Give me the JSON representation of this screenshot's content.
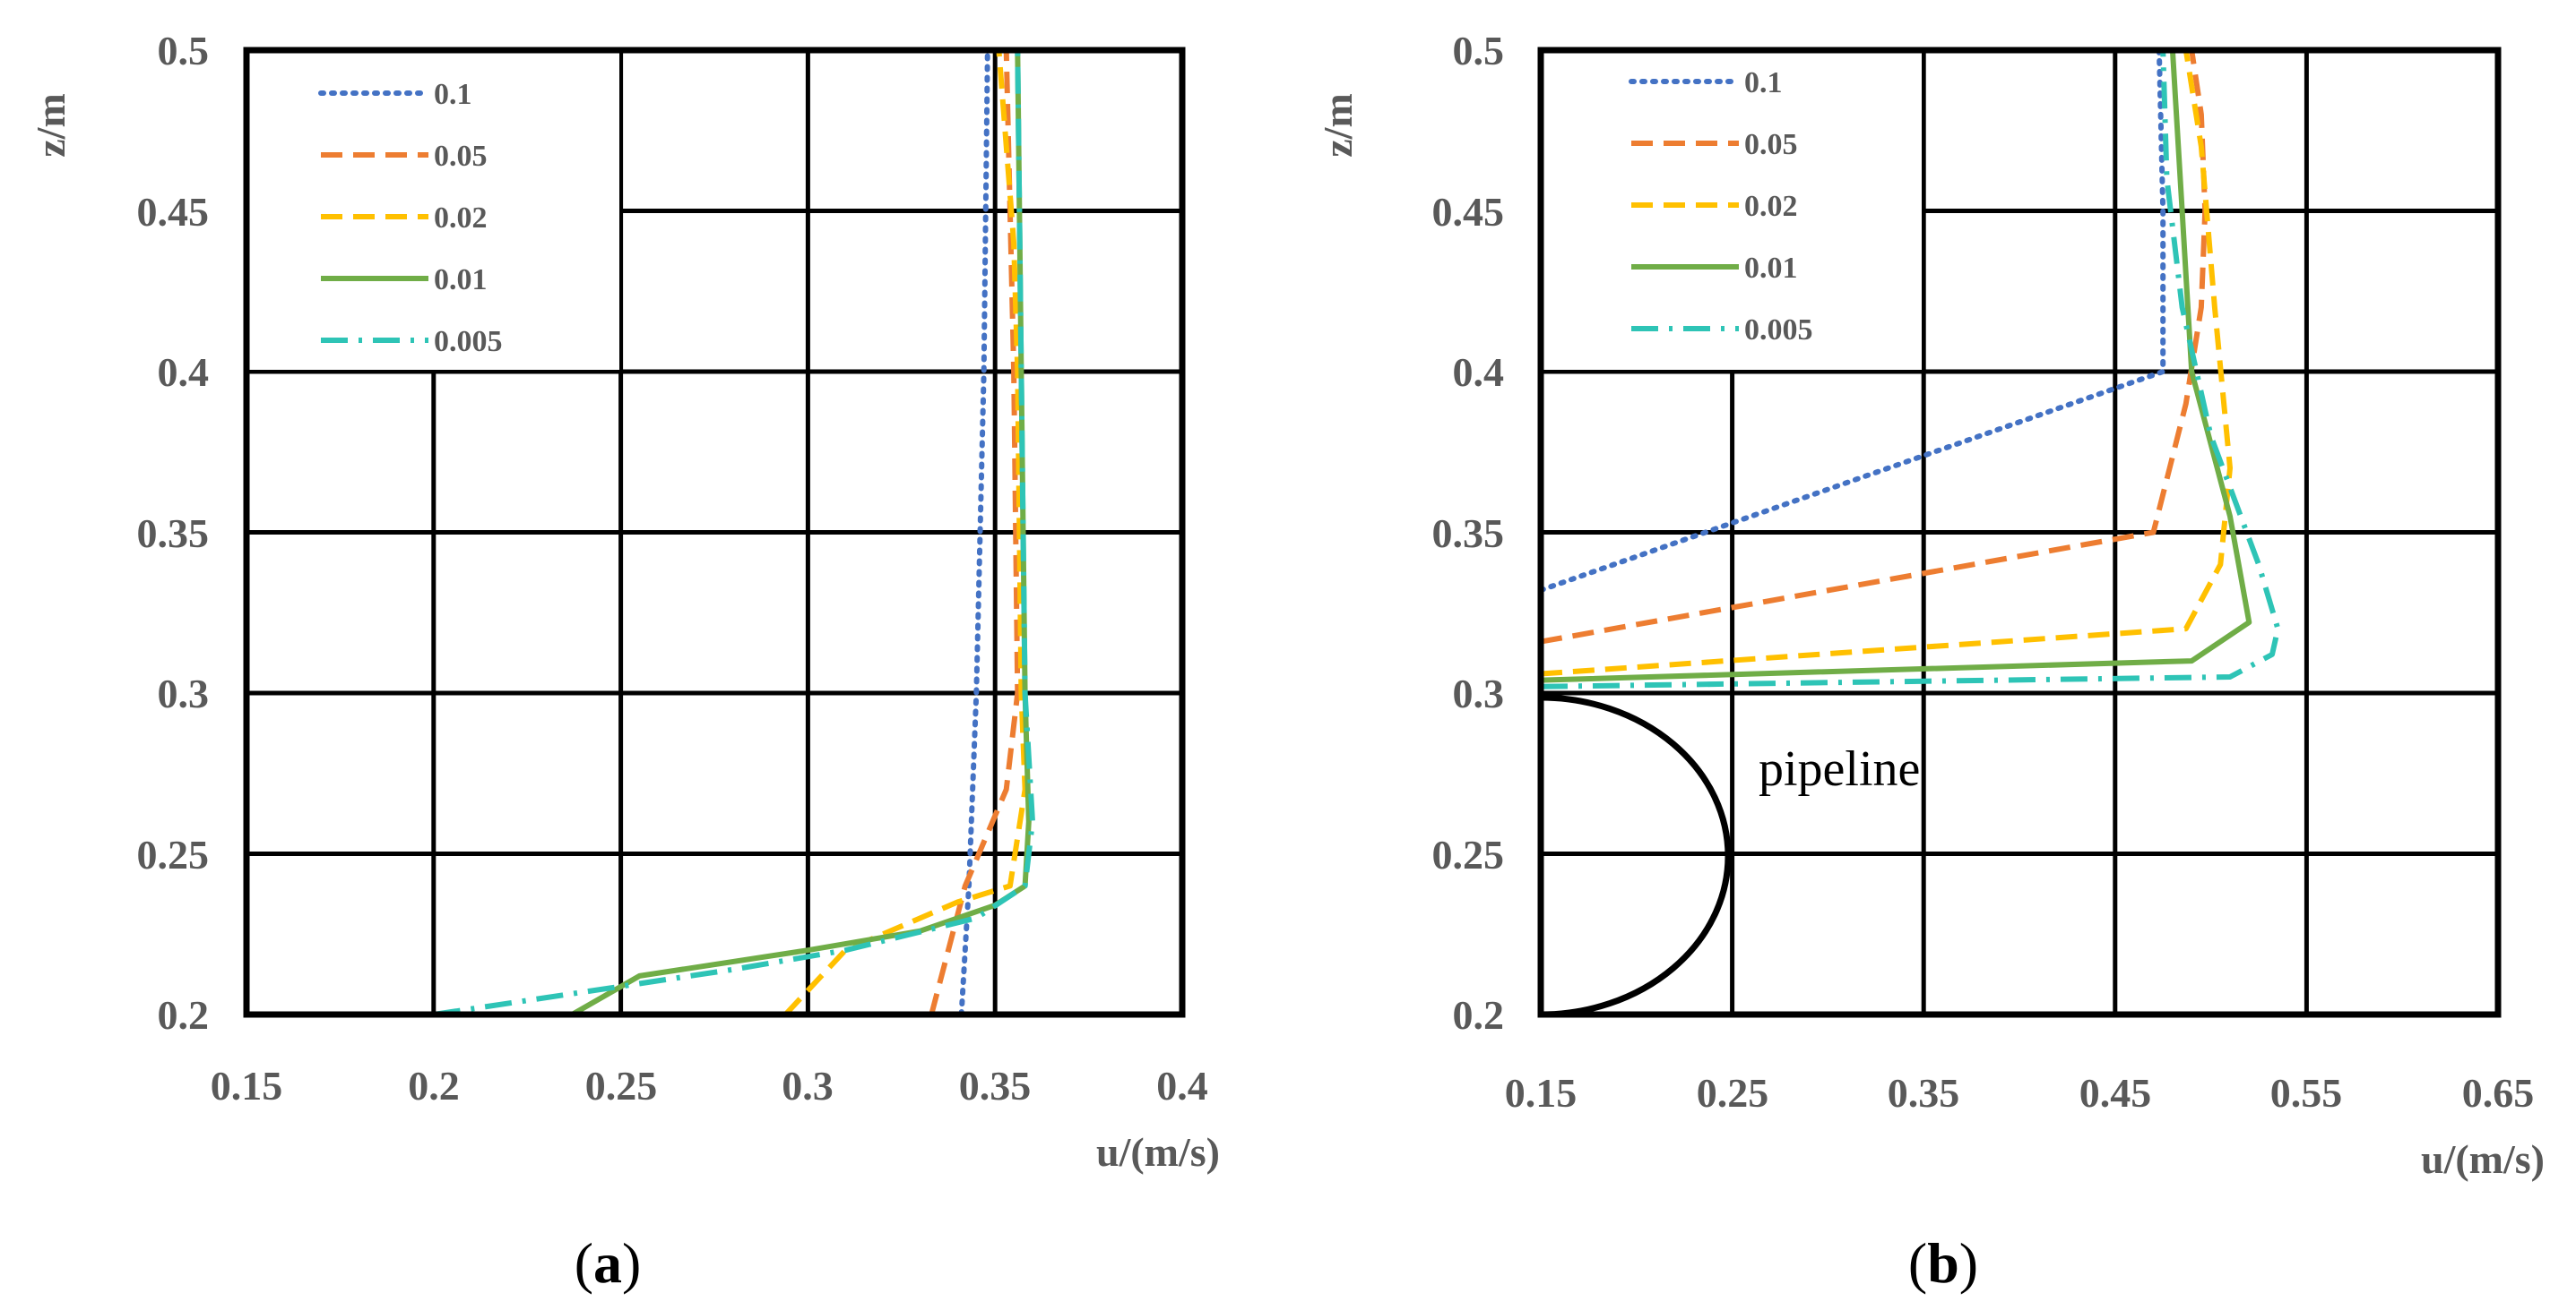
{
  "chart_data": [
    {
      "type": "line",
      "panel_label": "a",
      "title": "",
      "xlabel": "u/(m/s)",
      "ylabel": "z/m",
      "xlim": [
        0.15,
        0.4
      ],
      "ylim": [
        0.2,
        0.5
      ],
      "xticks": [
        "0.15",
        "0.2",
        "0.25",
        "0.3",
        "0.35",
        "0.4"
      ],
      "yticks": [
        "0.2",
        "0.25",
        "0.3",
        "0.35",
        "0.4",
        "0.45",
        "0.5"
      ],
      "grid": true,
      "legend_position": "top-left",
      "annotation": "",
      "series": [
        {
          "name": "0.1",
          "color": "#4472C4",
          "style": "dotted",
          "points": [
            [
              0.341,
              0.2
            ],
            [
              0.343,
              0.24
            ],
            [
              0.345,
              0.3
            ],
            [
              0.347,
              0.4
            ],
            [
              0.348,
              0.5
            ]
          ]
        },
        {
          "name": "0.05",
          "color": "#ED7D31",
          "style": "dashed",
          "points": [
            [
              0.333,
              0.2
            ],
            [
              0.342,
              0.24
            ],
            [
              0.353,
              0.27
            ],
            [
              0.356,
              0.3
            ],
            [
              0.355,
              0.4
            ],
            [
              0.354,
              0.45
            ],
            [
              0.353,
              0.5
            ]
          ]
        },
        {
          "name": "0.02",
          "color": "#FFC000",
          "style": "dashed",
          "points": [
            [
              0.294,
              0.2
            ],
            [
              0.31,
              0.22
            ],
            [
              0.34,
              0.235
            ],
            [
              0.354,
              0.24
            ],
            [
              0.358,
              0.27
            ],
            [
              0.357,
              0.3
            ],
            [
              0.356,
              0.4
            ],
            [
              0.355,
              0.44
            ],
            [
              0.351,
              0.5
            ]
          ]
        },
        {
          "name": "0.01",
          "color": "#70AD47",
          "style": "solid",
          "points": [
            [
              0.237,
              0.2
            ],
            [
              0.255,
              0.212
            ],
            [
              0.3,
              0.22
            ],
            [
              0.33,
              0.226
            ],
            [
              0.35,
              0.234
            ],
            [
              0.358,
              0.24
            ],
            [
              0.359,
              0.26
            ],
            [
              0.358,
              0.3
            ],
            [
              0.357,
              0.4
            ],
            [
              0.356,
              0.5
            ]
          ]
        },
        {
          "name": "0.005",
          "color": "#2EC4B6",
          "style": "dashdot",
          "points": [
            [
              0.2,
              0.2
            ],
            [
              0.24,
              0.207
            ],
            [
              0.28,
              0.214
            ],
            [
              0.31,
              0.22
            ],
            [
              0.345,
              0.23
            ],
            [
              0.358,
              0.24
            ],
            [
              0.36,
              0.26
            ],
            [
              0.358,
              0.3
            ],
            [
              0.357,
              0.4
            ],
            [
              0.356,
              0.5
            ]
          ]
        }
      ]
    },
    {
      "type": "line",
      "panel_label": "b",
      "title": "",
      "xlabel": "u/(m/s)",
      "ylabel": "z/m",
      "xlim": [
        0.15,
        0.65
      ],
      "ylim": [
        0.2,
        0.5
      ],
      "xticks": [
        "0.15",
        "0.25",
        "0.35",
        "0.45",
        "0.55",
        "0.65"
      ],
      "yticks": [
        "0.2",
        "0.25",
        "0.3",
        "0.35",
        "0.4",
        "0.45",
        "0.5"
      ],
      "grid": true,
      "legend_position": "top-left",
      "annotation": "pipeline",
      "series": [
        {
          "name": "0.1",
          "color": "#4472C4",
          "style": "dotted",
          "points": [
            [
              0.15,
              0.332
            ],
            [
              0.475,
              0.4
            ],
            [
              0.475,
              0.45
            ],
            [
              0.473,
              0.5
            ]
          ]
        },
        {
          "name": "0.05",
          "color": "#ED7D31",
          "style": "dashed",
          "points": [
            [
              0.15,
              0.316
            ],
            [
              0.47,
              0.35
            ],
            [
              0.487,
              0.39
            ],
            [
              0.495,
              0.42
            ],
            [
              0.497,
              0.45
            ],
            [
              0.495,
              0.48
            ],
            [
              0.49,
              0.5
            ]
          ]
        },
        {
          "name": "0.02",
          "color": "#FFC000",
          "style": "dashed",
          "points": [
            [
              0.15,
              0.306
            ],
            [
              0.487,
              0.32
            ],
            [
              0.505,
              0.34
            ],
            [
              0.51,
              0.37
            ],
            [
              0.502,
              0.42
            ],
            [
              0.495,
              0.47
            ],
            [
              0.487,
              0.5
            ]
          ]
        },
        {
          "name": "0.01",
          "color": "#70AD47",
          "style": "solid",
          "points": [
            [
              0.15,
              0.304
            ],
            [
              0.49,
              0.31
            ],
            [
              0.52,
              0.322
            ],
            [
              0.51,
              0.355
            ],
            [
              0.49,
              0.4
            ],
            [
              0.485,
              0.45
            ],
            [
              0.48,
              0.5
            ]
          ]
        },
        {
          "name": "0.005",
          "color": "#2EC4B6",
          "style": "dashdot",
          "points": [
            [
              0.15,
              0.302
            ],
            [
              0.51,
              0.305
            ],
            [
              0.532,
              0.312
            ],
            [
              0.535,
              0.32
            ],
            [
              0.525,
              0.34
            ],
            [
              0.5,
              0.38
            ],
            [
              0.485,
              0.42
            ],
            [
              0.477,
              0.46
            ],
            [
              0.475,
              0.5
            ]
          ]
        }
      ]
    }
  ]
}
